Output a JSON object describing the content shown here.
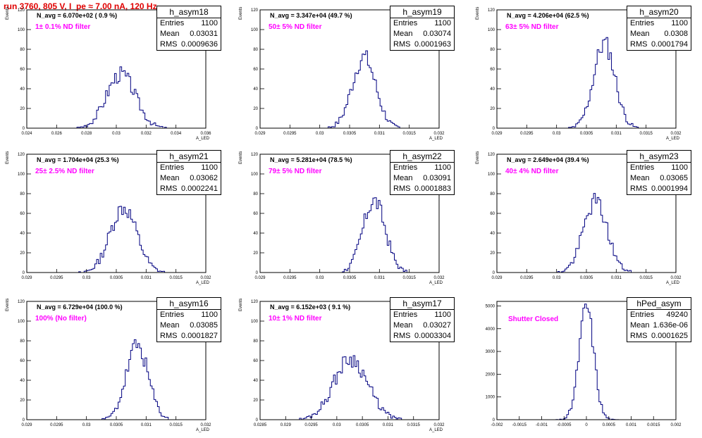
{
  "run_title": "run 3760,   805 V, I_pe ≈ 7.00 nA, 120 Hz",
  "stats_labels": {
    "entries": "Entries",
    "mean": "Mean",
    "rms": "RMS"
  },
  "chart_data": [
    {
      "type": "bar",
      "name": "h_asym18",
      "entries": "1100",
      "mean": "0.03031",
      "rms": "0.0009636",
      "navg": "N_avg = 6.070e+02 ( 0.9 %)",
      "filter": "1± 0.1% ND filter",
      "xlabel": "A_LED",
      "ylabel": "Events",
      "xlim": [
        0.024,
        0.036
      ],
      "ylim": [
        0,
        120
      ],
      "xticks": [
        0.024,
        0.026,
        0.028,
        0.03,
        0.032,
        0.034,
        0.036
      ],
      "xticklabels": [
        "0.024",
        "0.026",
        "0.028",
        "0.03",
        "0.032",
        "0.034",
        "0.036"
      ],
      "yticks": [
        0,
        20,
        40,
        60,
        80,
        100,
        120
      ],
      "mu": 0.03031,
      "sigma": 0.000964,
      "peak": 55,
      "seed": 3
    },
    {
      "type": "bar",
      "name": "h_asym19",
      "entries": "1100",
      "mean": "0.03074",
      "rms": "0.0001963",
      "navg": "N_avg = 3.347e+04 (49.7 %)",
      "filter": "50± 5% ND filter",
      "xlabel": "A_LED",
      "ylabel": "Events",
      "xlim": [
        0.029,
        0.032
      ],
      "ylim": [
        0,
        120
      ],
      "xticks": [
        0.029,
        0.0295,
        0.03,
        0.0305,
        0.031,
        0.0315,
        0.032
      ],
      "xticklabels": [
        "0.029",
        "0.0295",
        "0.03",
        "0.0305",
        "0.031",
        "0.0315",
        "0.032"
      ],
      "yticks": [
        0,
        20,
        40,
        60,
        80,
        100,
        120
      ],
      "mu": 0.03074,
      "sigma": 0.000196,
      "peak": 72,
      "seed": 7
    },
    {
      "type": "bar",
      "name": "h_asym20",
      "entries": "1100",
      "mean": "0.0308",
      "rms": "0.0001794",
      "navg": "N_avg = 4.206e+04 (62.5 %)",
      "filter": "63± 5% ND filter",
      "xlabel": "A_LED",
      "ylabel": "Events",
      "xlim": [
        0.029,
        0.032
      ],
      "ylim": [
        0,
        120
      ],
      "xticks": [
        0.029,
        0.0295,
        0.03,
        0.0305,
        0.031,
        0.0315,
        0.032
      ],
      "xticklabels": [
        "0.029",
        "0.0295",
        "0.03",
        "0.0305",
        "0.031",
        "0.0315",
        "0.032"
      ],
      "yticks": [
        0,
        20,
        40,
        60,
        80,
        100,
        120
      ],
      "mu": 0.0308,
      "sigma": 0.000179,
      "peak": 86,
      "seed": 11
    },
    {
      "type": "bar",
      "name": "h_asym21",
      "entries": "1100",
      "mean": "0.03062",
      "rms": "0.0002241",
      "navg": "N_avg = 1.704e+04 (25.3 %)",
      "filter": "25± 2.5% ND filter",
      "xlabel": "A_LED",
      "ylabel": "Events",
      "xlim": [
        0.029,
        0.032
      ],
      "ylim": [
        0,
        120
      ],
      "xticks": [
        0.029,
        0.0295,
        0.03,
        0.0305,
        0.031,
        0.0315,
        0.032
      ],
      "xticklabels": [
        "0.029",
        "0.0295",
        "0.03",
        "0.0305",
        "0.031",
        "0.0315",
        "0.032"
      ],
      "yticks": [
        0,
        20,
        40,
        60,
        80,
        100,
        120
      ],
      "mu": 0.03062,
      "sigma": 0.000224,
      "peak": 66,
      "seed": 13
    },
    {
      "type": "bar",
      "name": "h_asym22",
      "entries": "1100",
      "mean": "0.03091",
      "rms": "0.0001883",
      "navg": "N_avg = 5.281e+04 (78.5 %)",
      "filter": "79± 5% ND filter",
      "xlabel": "A_LED",
      "ylabel": "Events",
      "xlim": [
        0.029,
        0.032
      ],
      "ylim": [
        0,
        120
      ],
      "xticks": [
        0.029,
        0.0295,
        0.03,
        0.0305,
        0.031,
        0.0315,
        0.032
      ],
      "xticklabels": [
        "0.029",
        "0.0295",
        "0.03",
        "0.0305",
        "0.031",
        "0.0315",
        "0.032"
      ],
      "yticks": [
        0,
        20,
        40,
        60,
        80,
        100,
        120
      ],
      "mu": 0.03091,
      "sigma": 0.000188,
      "peak": 73,
      "seed": 17
    },
    {
      "type": "bar",
      "name": "h_asym23",
      "entries": "1100",
      "mean": "0.03065",
      "rms": "0.0001994",
      "navg": "N_avg = 2.649e+04 (39.4 %)",
      "filter": "40± 4% ND filter",
      "xlabel": "A_LED",
      "ylabel": "Events",
      "xlim": [
        0.029,
        0.032
      ],
      "ylim": [
        0,
        120
      ],
      "xticks": [
        0.029,
        0.0295,
        0.03,
        0.0305,
        0.031,
        0.0315,
        0.032
      ],
      "xticklabels": [
        "0.029",
        "0.0295",
        "0.03",
        "0.0305",
        "0.031",
        "0.0315",
        "0.032"
      ],
      "yticks": [
        0,
        20,
        40,
        60,
        80,
        100,
        120
      ],
      "mu": 0.03065,
      "sigma": 0.000199,
      "peak": 72,
      "seed": 19
    },
    {
      "type": "bar",
      "name": "h_asym16",
      "entries": "1100",
      "mean": "0.03085",
      "rms": "0.0001827",
      "navg": "N_avg = 6.729e+04 (100.0 %)",
      "filter": "100% (No filter)",
      "xlabel": "A_LED",
      "ylabel": "Events",
      "xlim": [
        0.029,
        0.032
      ],
      "ylim": [
        0,
        120
      ],
      "xticks": [
        0.029,
        0.0295,
        0.03,
        0.0305,
        0.031,
        0.0315,
        0.032
      ],
      "xticklabels": [
        "0.029",
        "0.0295",
        "0.03",
        "0.0305",
        "0.031",
        "0.0315",
        "0.032"
      ],
      "yticks": [
        0,
        20,
        40,
        60,
        80,
        100,
        120
      ],
      "mu": 0.03085,
      "sigma": 0.000183,
      "peak": 75,
      "seed": 23
    },
    {
      "type": "bar",
      "name": "h_asym17",
      "entries": "1100",
      "mean": "0.03027",
      "rms": "0.0003304",
      "navg": "N_avg = 6.152e+03 ( 9.1 %)",
      "filter": "10± 1% ND filter",
      "xlabel": "A_LED",
      "ylabel": "Events",
      "xlim": [
        0.0285,
        0.032
      ],
      "ylim": [
        0,
        120
      ],
      "xticks": [
        0.0285,
        0.029,
        0.0295,
        0.03,
        0.0305,
        0.031,
        0.0315,
        0.032
      ],
      "xticklabels": [
        "0.0285",
        "0.029",
        "0.0295",
        "0.03",
        "0.0305",
        "0.031",
        "0.0315",
        "0.032"
      ],
      "yticks": [
        0,
        20,
        40,
        60,
        80,
        100,
        120
      ],
      "mu": 0.03027,
      "sigma": 0.00033,
      "peak": 62,
      "seed": 29
    },
    {
      "type": "bar",
      "name": "hPed_asym",
      "entries": "49240",
      "mean": "1.636e-06",
      "rms": "0.0001625",
      "navg": "",
      "filter": "Shutter Closed",
      "xlabel": "",
      "ylabel": "",
      "xlim": [
        -0.002,
        0.002
      ],
      "ylim": [
        0,
        5200
      ],
      "xticks": [
        -0.002,
        -0.0015,
        -0.001,
        -0.0005,
        0,
        0.0005,
        0.001,
        0.0015,
        0.002
      ],
      "xticklabels": [
        "-0.002",
        "-0.0015",
        "-0.001",
        "-0.0005",
        "0",
        "0.0005",
        "0.001",
        "0.0015",
        "0.002"
      ],
      "yticks": [
        0,
        1000,
        2000,
        3000,
        4000,
        5000
      ],
      "mu": 1.6e-06,
      "sigma": 0.000163,
      "peak": 5000,
      "seed": 31
    }
  ]
}
